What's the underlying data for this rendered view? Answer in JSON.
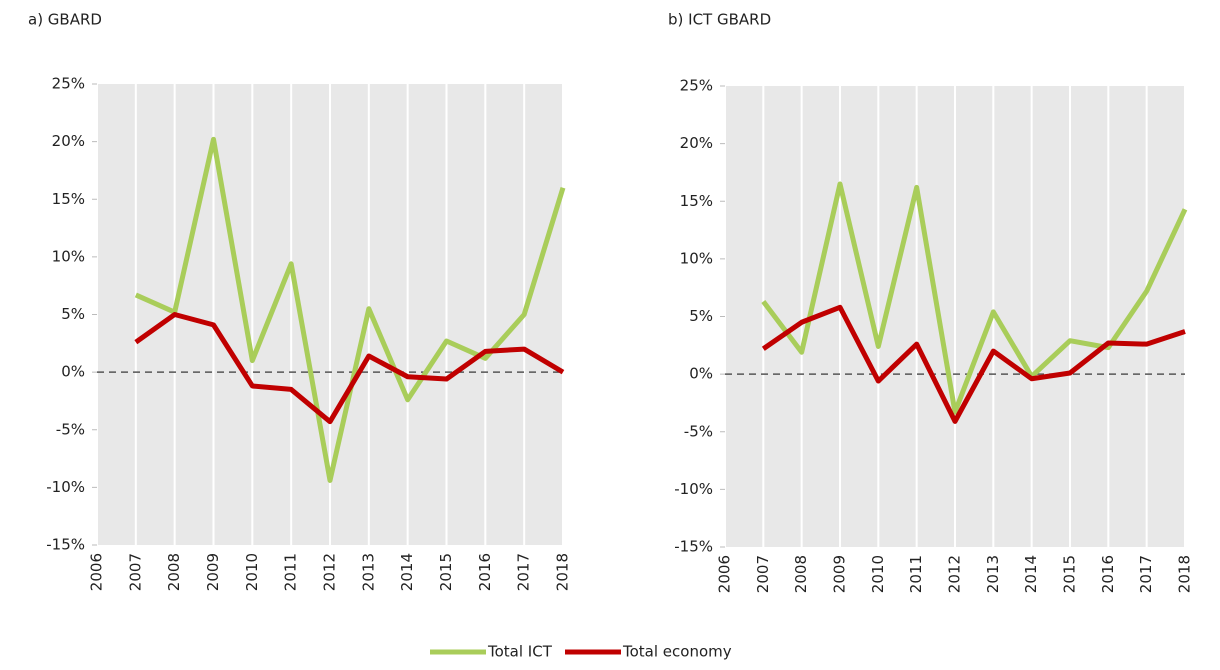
{
  "chart_data": [
    {
      "type": "line",
      "title": "a) GBARD",
      "x": [
        2007,
        2008,
        2009,
        2010,
        2011,
        2012,
        2013,
        2014,
        2015,
        2016,
        2017,
        2018
      ],
      "series": [
        {
          "name": "Total ICT",
          "color": "#a9cd5a",
          "values": [
            6.7,
            5.2,
            20.2,
            1.0,
            9.4,
            -9.4,
            5.5,
            -2.4,
            2.7,
            1.2,
            5.0,
            16.0
          ]
        },
        {
          "name": "Total economy",
          "color": "#c00000",
          "values": [
            2.6,
            5.0,
            4.1,
            -1.2,
            -1.5,
            -4.3,
            1.4,
            -0.4,
            -0.6,
            1.8,
            2.0,
            0.0
          ]
        }
      ],
      "xlim": [
        2006,
        2018
      ],
      "xticks": [
        2006,
        2007,
        2008,
        2009,
        2010,
        2011,
        2012,
        2013,
        2014,
        2015,
        2016,
        2017,
        2018
      ],
      "ylim": [
        -15,
        25
      ],
      "yticks": [
        {
          "value": -15,
          "label": "-15%"
        },
        {
          "value": -10,
          "label": "-10%"
        },
        {
          "value": -5,
          "label": "-5%"
        },
        {
          "value": 0,
          "label": "0%"
        },
        {
          "value": 5,
          "label": "5%"
        },
        {
          "value": 10,
          "label": "10%"
        },
        {
          "value": 15,
          "label": "15%"
        },
        {
          "value": 20,
          "label": "20%"
        },
        {
          "value": 25,
          "label": "25%"
        }
      ],
      "grid": "x",
      "reference_line": 0,
      "legend": "bottom"
    },
    {
      "type": "line",
      "title": "b) ICT GBARD",
      "x": [
        2007,
        2008,
        2009,
        2010,
        2011,
        2012,
        2013,
        2014,
        2015,
        2016,
        2017,
        2018
      ],
      "series": [
        {
          "color": "#a9cd5a",
          "values": [
            6.3,
            1.9,
            16.5,
            2.4,
            16.2,
            -3.3,
            5.4,
            -0.2,
            2.9,
            2.3,
            7.2,
            14.3
          ]
        },
        {
          "color": "#c00000",
          "values": [
            2.2,
            4.5,
            5.8,
            -0.6,
            2.6,
            -4.1,
            2.0,
            -0.4,
            0.1,
            2.7,
            2.6,
            3.7
          ]
        }
      ],
      "xlim": [
        2006,
        2018
      ],
      "xticks": [
        2006,
        2007,
        2008,
        2009,
        2010,
        2011,
        2012,
        2013,
        2014,
        2015,
        2016,
        2017,
        2018
      ],
      "ylim": [
        -15,
        25
      ],
      "yticks": [
        {
          "value": -15,
          "label": "-15%"
        },
        {
          "value": -10,
          "label": "-10%"
        },
        {
          "value": -5,
          "label": "-5%"
        },
        {
          "value": 0,
          "label": "0%"
        },
        {
          "value": 5,
          "label": "5%"
        },
        {
          "value": 10,
          "label": "10%"
        },
        {
          "value": 15,
          "label": "15%"
        },
        {
          "value": 20,
          "label": "20%"
        },
        {
          "value": 25,
          "label": "25%"
        }
      ],
      "grid": "x",
      "reference_line": 0
    }
  ]
}
